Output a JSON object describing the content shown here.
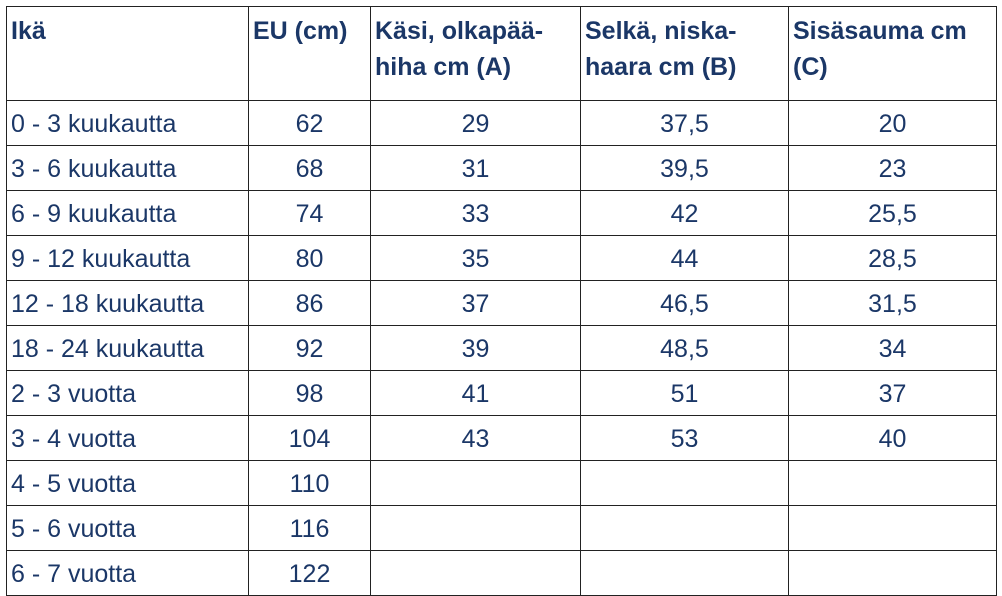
{
  "table": {
    "header": [
      "Ikä",
      "EU (cm)",
      "Käsi, olkapää-hiha cm (A)",
      "Selkä, niska-haara cm (B)",
      "Sisäsauma cm (C)"
    ],
    "rows": [
      [
        "0 - 3 kuukautta",
        "62",
        "29",
        "37,5",
        "20"
      ],
      [
        "3 - 6 kuukautta",
        "68",
        "31",
        "39,5",
        "23"
      ],
      [
        "6 - 9 kuukautta",
        "74",
        "33",
        "42",
        "25,5"
      ],
      [
        "9 - 12 kuukautta",
        "80",
        "35",
        "44",
        "28,5"
      ],
      [
        "12 - 18 kuukautta",
        "86",
        "37",
        "46,5",
        "31,5"
      ],
      [
        "18 - 24 kuukautta",
        "92",
        "39",
        "48,5",
        "34"
      ],
      [
        "2 - 3 vuotta",
        "98",
        "41",
        "51",
        "37"
      ],
      [
        "3 - 4 vuotta",
        "104",
        "43",
        "53",
        "40"
      ],
      [
        "4 - 5 vuotta",
        "110"
      ],
      [
        "5 - 6 vuotta",
        "116"
      ],
      [
        "6 - 7 vuotta",
        "122"
      ]
    ]
  }
}
